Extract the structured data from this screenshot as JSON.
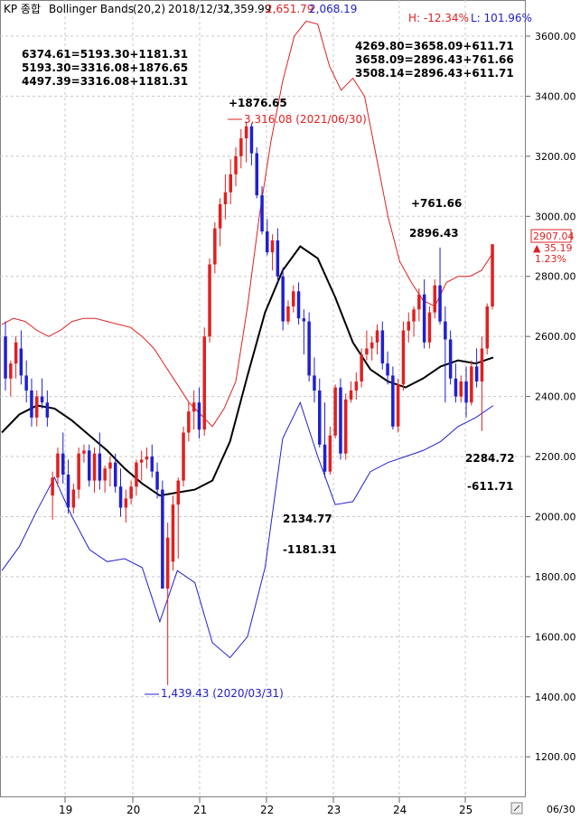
{
  "header": {
    "symbol": "KP 종합",
    "indicator": "Bollinger Bands",
    "params": "(20,2)",
    "date": "2018/12/31",
    "close": "2,359.99",
    "upper": "2,651.79",
    "lower": "2,068.19",
    "high_pct": "H: -12.34%",
    "low_pct": "L: 101.96%"
  },
  "colors": {
    "up": "#e02020",
    "down": "#2020d0",
    "upper_band": "#e02020",
    "lower_band": "#2020d0",
    "middle_band": "#000000",
    "grid": "#c8c8c8",
    "current_price_box": "#e02020"
  },
  "annotations": {
    "top_left": [
      "6374.61=5193.30+1181.31",
      "5193.30=3316.08+1876.65",
      "4497.39=3316.08+1181.31"
    ],
    "top_right": [
      "4269.80=3658.09+611.71",
      "3658.09=2896.43+761.66",
      "3508.14=2896.43+611.71"
    ],
    "peak_gain": "+1876.65",
    "peak_label": "3,316.08 (2021/06/30)",
    "gain_761": "+761.66",
    "val_2896": "2896.43",
    "val_2284": "2284.72",
    "loss_611": "-611.71",
    "val_2134": "2134.77",
    "loss_1181": "-1181.31",
    "low_label": "1,439.43 (2020/03/31)",
    "current_price": "2907.04",
    "current_change": "▲ 35.19",
    "current_pct": "1.23%",
    "bottom_right_date": "06/30"
  },
  "chart_data": {
    "type": "candlestick",
    "title": "KP 종합 Bollinger Bands (20,2)",
    "x_tick_labels": [
      "19",
      "20",
      "21",
      "22",
      "23",
      "24",
      "25"
    ],
    "y_tick_labels": [
      "3600.00",
      "3400.00",
      "3200.00",
      "3000.00",
      "2800.00",
      "2600.00",
      "2400.00",
      "2200.00",
      "2000.00",
      "1800.00",
      "1600.00",
      "1400.00",
      "1200.00"
    ],
    "ylim": [
      1100,
      3700
    ],
    "grid": true,
    "candles": [
      {
        "o": 2600,
        "h": 2650,
        "l": 2420,
        "c": 2460
      },
      {
        "o": 2460,
        "h": 2520,
        "l": 2400,
        "c": 2510
      },
      {
        "o": 2510,
        "h": 2600,
        "l": 2460,
        "c": 2580
      },
      {
        "o": 2560,
        "h": 2620,
        "l": 2440,
        "c": 2470
      },
      {
        "o": 2470,
        "h": 2520,
        "l": 2380,
        "c": 2420
      },
      {
        "o": 2420,
        "h": 2460,
        "l": 2300,
        "c": 2330
      },
      {
        "o": 2330,
        "h": 2420,
        "l": 2300,
        "c": 2400
      },
      {
        "o": 2400,
        "h": 2460,
        "l": 2360,
        "c": 2380
      },
      {
        "o": 2380,
        "h": 2420,
        "l": 2300,
        "c": 2330
      },
      {
        "o": 2070,
        "h": 2150,
        "l": 1990,
        "c": 2130
      },
      {
        "o": 2130,
        "h": 2230,
        "l": 2100,
        "c": 2210
      },
      {
        "o": 2210,
        "h": 2280,
        "l": 2110,
        "c": 2140
      },
      {
        "o": 2140,
        "h": 2190,
        "l": 2010,
        "c": 2030
      },
      {
        "o": 2030,
        "h": 2110,
        "l": 2010,
        "c": 2090
      },
      {
        "o": 2090,
        "h": 2230,
        "l": 2060,
        "c": 2210
      },
      {
        "o": 2210,
        "h": 2240,
        "l": 2180,
        "c": 2220
      },
      {
        "o": 2220,
        "h": 2240,
        "l": 2100,
        "c": 2120
      },
      {
        "o": 2120,
        "h": 2230,
        "l": 2080,
        "c": 2210
      },
      {
        "o": 2210,
        "h": 2280,
        "l": 2090,
        "c": 2120
      },
      {
        "o": 2120,
        "h": 2170,
        "l": 2080,
        "c": 2160
      },
      {
        "o": 2160,
        "h": 2200,
        "l": 2100,
        "c": 2180
      },
      {
        "o": 2180,
        "h": 2210,
        "l": 2080,
        "c": 2100
      },
      {
        "o": 2100,
        "h": 2160,
        "l": 2000,
        "c": 2030
      },
      {
        "o": 2030,
        "h": 2090,
        "l": 1980,
        "c": 2060
      },
      {
        "o": 2060,
        "h": 2120,
        "l": 2040,
        "c": 2100
      },
      {
        "o": 2100,
        "h": 2190,
        "l": 2070,
        "c": 2180
      },
      {
        "o": 2180,
        "h": 2220,
        "l": 2120,
        "c": 2190
      },
      {
        "o": 2190,
        "h": 2230,
        "l": 2160,
        "c": 2200
      },
      {
        "o": 2200,
        "h": 2240,
        "l": 2130,
        "c": 2150
      },
      {
        "o": 2150,
        "h": 2180,
        "l": 2060,
        "c": 2090
      },
      {
        "o": 2090,
        "h": 2120,
        "l": 1780,
        "c": 1760
      },
      {
        "o": 1760,
        "h": 1980,
        "l": 1439,
        "c": 1930
      },
      {
        "o": 1850,
        "h": 2070,
        "l": 1820,
        "c": 2040
      },
      {
        "o": 2040,
        "h": 2130,
        "l": 1860,
        "c": 2120
      },
      {
        "o": 2120,
        "h": 2300,
        "l": 2100,
        "c": 2280
      },
      {
        "o": 2280,
        "h": 2380,
        "l": 2250,
        "c": 2350
      },
      {
        "o": 2350,
        "h": 2420,
        "l": 2290,
        "c": 2380
      },
      {
        "o": 2380,
        "h": 2430,
        "l": 2260,
        "c": 2290
      },
      {
        "o": 2290,
        "h": 2630,
        "l": 2270,
        "c": 2600
      },
      {
        "o": 2600,
        "h": 2860,
        "l": 2580,
        "c": 2840
      },
      {
        "o": 2840,
        "h": 2980,
        "l": 2810,
        "c": 2960
      },
      {
        "o": 2960,
        "h": 3060,
        "l": 2900,
        "c": 3040
      },
      {
        "o": 3040,
        "h": 3140,
        "l": 2990,
        "c": 3080
      },
      {
        "o": 3080,
        "h": 3190,
        "l": 3040,
        "c": 3140
      },
      {
        "o": 3140,
        "h": 3230,
        "l": 3100,
        "c": 3200
      },
      {
        "o": 3200,
        "h": 3290,
        "l": 3160,
        "c": 3260
      },
      {
        "o": 3260,
        "h": 3316,
        "l": 3180,
        "c": 3300
      },
      {
        "o": 3300,
        "h": 3310,
        "l": 3170,
        "c": 3210
      },
      {
        "o": 3210,
        "h": 3230,
        "l": 3060,
        "c": 3070
      },
      {
        "o": 3070,
        "h": 3100,
        "l": 2940,
        "c": 2950
      },
      {
        "o": 2950,
        "h": 2990,
        "l": 2870,
        "c": 2880
      },
      {
        "o": 2880,
        "h": 2940,
        "l": 2820,
        "c": 2920
      },
      {
        "o": 2920,
        "h": 2960,
        "l": 2780,
        "c": 2800
      },
      {
        "o": 2800,
        "h": 2830,
        "l": 2620,
        "c": 2650
      },
      {
        "o": 2650,
        "h": 2720,
        "l": 2640,
        "c": 2700
      },
      {
        "o": 2700,
        "h": 2770,
        "l": 2680,
        "c": 2750
      },
      {
        "o": 2750,
        "h": 2780,
        "l": 2640,
        "c": 2660
      },
      {
        "o": 2660,
        "h": 2690,
        "l": 2540,
        "c": 2650
      },
      {
        "o": 2650,
        "h": 2680,
        "l": 2450,
        "c": 2470
      },
      {
        "o": 2470,
        "h": 2530,
        "l": 2380,
        "c": 2420
      },
      {
        "o": 2420,
        "h": 2460,
        "l": 2230,
        "c": 2240
      },
      {
        "o": 2240,
        "h": 2380,
        "l": 2130,
        "c": 2150
      },
      {
        "o": 2150,
        "h": 2300,
        "l": 2140,
        "c": 2270
      },
      {
        "o": 2270,
        "h": 2440,
        "l": 2260,
        "c": 2430
      },
      {
        "o": 2430,
        "h": 2460,
        "l": 2190,
        "c": 2210
      },
      {
        "o": 2210,
        "h": 2410,
        "l": 2190,
        "c": 2390
      },
      {
        "o": 2390,
        "h": 2450,
        "l": 2380,
        "c": 2420
      },
      {
        "o": 2420,
        "h": 2480,
        "l": 2390,
        "c": 2450
      },
      {
        "o": 2450,
        "h": 2560,
        "l": 2430,
        "c": 2540
      },
      {
        "o": 2540,
        "h": 2620,
        "l": 2520,
        "c": 2560
      },
      {
        "o": 2560,
        "h": 2600,
        "l": 2520,
        "c": 2580
      },
      {
        "o": 2580,
        "h": 2640,
        "l": 2540,
        "c": 2620
      },
      {
        "o": 2620,
        "h": 2650,
        "l": 2490,
        "c": 2510
      },
      {
        "o": 2510,
        "h": 2550,
        "l": 2440,
        "c": 2470
      },
      {
        "o": 2470,
        "h": 2500,
        "l": 2290,
        "c": 2300
      },
      {
        "o": 2300,
        "h": 2460,
        "l": 2280,
        "c": 2440
      },
      {
        "o": 2440,
        "h": 2650,
        "l": 2420,
        "c": 2620
      },
      {
        "o": 2620,
        "h": 2680,
        "l": 2580,
        "c": 2650
      },
      {
        "o": 2650,
        "h": 2700,
        "l": 2600,
        "c": 2690
      },
      {
        "o": 2690,
        "h": 2760,
        "l": 2650,
        "c": 2740
      },
      {
        "o": 2740,
        "h": 2790,
        "l": 2560,
        "c": 2580
      },
      {
        "o": 2580,
        "h": 2700,
        "l": 2560,
        "c": 2680
      },
      {
        "o": 2680,
        "h": 2790,
        "l": 2660,
        "c": 2770
      },
      {
        "o": 2770,
        "h": 2896,
        "l": 2640,
        "c": 2650
      },
      {
        "o": 2650,
        "h": 2700,
        "l": 2380,
        "c": 2590
      },
      {
        "o": 2590,
        "h": 2620,
        "l": 2440,
        "c": 2460
      },
      {
        "o": 2460,
        "h": 2510,
        "l": 2380,
        "c": 2400
      },
      {
        "o": 2400,
        "h": 2470,
        "l": 2380,
        "c": 2450
      },
      {
        "o": 2450,
        "h": 2500,
        "l": 2330,
        "c": 2380
      },
      {
        "o": 2380,
        "h": 2520,
        "l": 2370,
        "c": 2500
      },
      {
        "o": 2500,
        "h": 2560,
        "l": 2430,
        "c": 2450
      },
      {
        "o": 2450,
        "h": 2600,
        "l": 2285,
        "c": 2560
      },
      {
        "o": 2560,
        "h": 2710,
        "l": 2540,
        "c": 2700
      },
      {
        "o": 2700,
        "h": 2907,
        "l": 2690,
        "c": 2907
      }
    ],
    "upper_band": [
      2640,
      2660,
      2650,
      2620,
      2600,
      2620,
      2650,
      2660,
      2660,
      2650,
      2640,
      2630,
      2600,
      2560,
      2500,
      2440,
      2380,
      2340,
      2300,
      2360,
      2450,
      2700,
      3000,
      3250,
      3450,
      3600,
      3650,
      3640,
      3500,
      3420,
      3460,
      3400,
      3200,
      3000,
      2850,
      2780,
      2720,
      2700,
      2780,
      2800,
      2800,
      2820,
      2880
    ],
    "middle_band": [
      2280,
      2340,
      2370,
      2360,
      2320,
      2270,
      2220,
      2160,
      2110,
      2070,
      2080,
      2090,
      2120,
      2250,
      2470,
      2680,
      2820,
      2900,
      2860,
      2730,
      2580,
      2490,
      2450,
      2430,
      2460,
      2500,
      2520,
      2510,
      2530
    ],
    "lower_band": [
      1820,
      1900,
      2020,
      2130,
      2000,
      1890,
      1850,
      1860,
      1830,
      1650,
      1820,
      1780,
      1580,
      1530,
      1600,
      1830,
      2260,
      2380,
      2200,
      2040,
      2050,
      2150,
      2180,
      2200,
      2220,
      2250,
      2300,
      2330,
      2370
    ]
  }
}
